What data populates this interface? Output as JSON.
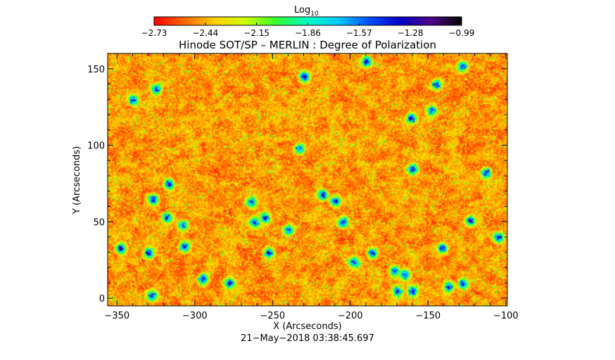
{
  "chart_data": {
    "type": "heatmap",
    "title": "Hinode SOT/SP – MERLIN : Degree of Polarization",
    "colorbar": {
      "label_main": "Log",
      "label_sub": "10",
      "ticks": [
        "−2.73",
        "−2.44",
        "−2.15",
        "−1.86",
        "−1.57",
        "−1.28",
        "−0.99"
      ],
      "range": [
        -2.73,
        -0.99
      ],
      "colormap": [
        "#ff0000",
        "#ff6a00",
        "#ffd200",
        "#c8ff00",
        "#32ff32",
        "#00ffc8",
        "#00c8ff",
        "#0050ff",
        "#0000c8",
        "#50008c",
        "#000000"
      ]
    },
    "xlabel": "X (Arcseconds)",
    "ylabel": "Y (Arcseconds)",
    "xlim": [
      -356,
      -99
    ],
    "ylim": [
      -5,
      160
    ],
    "xticks": [
      -350,
      -300,
      -250,
      -200,
      -150,
      -100
    ],
    "xtick_labels": [
      "−350",
      "−300",
      "−250",
      "−200",
      "−150",
      "−100"
    ],
    "yticks": [
      0,
      50,
      100,
      150
    ],
    "ytick_labels": [
      "0",
      "50",
      "100",
      "150"
    ],
    "timestamp": "21−May−2018 03:38:45.697",
    "strong_regions": [
      {
        "x": -190,
        "y": 155
      },
      {
        "x": -230,
        "y": 145
      },
      {
        "x": -128,
        "y": 152
      },
      {
        "x": -145,
        "y": 140
      },
      {
        "x": -148,
        "y": 123
      },
      {
        "x": -161,
        "y": 118
      },
      {
        "x": -340,
        "y": 130
      },
      {
        "x": -325,
        "y": 137
      },
      {
        "x": -317,
        "y": 75
      },
      {
        "x": -327,
        "y": 65
      },
      {
        "x": -318,
        "y": 53
      },
      {
        "x": -308,
        "y": 48
      },
      {
        "x": -307,
        "y": 34
      },
      {
        "x": -330,
        "y": 30
      },
      {
        "x": -348,
        "y": 33
      },
      {
        "x": -295,
        "y": 13
      },
      {
        "x": -278,
        "y": 10
      },
      {
        "x": -264,
        "y": 63
      },
      {
        "x": -262,
        "y": 50
      },
      {
        "x": -255,
        "y": 53
      },
      {
        "x": -253,
        "y": 30
      },
      {
        "x": -240,
        "y": 45
      },
      {
        "x": -218,
        "y": 68
      },
      {
        "x": -210,
        "y": 64
      },
      {
        "x": -205,
        "y": 50
      },
      {
        "x": -198,
        "y": 24
      },
      {
        "x": -172,
        "y": 18
      },
      {
        "x": -165,
        "y": 16
      },
      {
        "x": -170,
        "y": 5
      },
      {
        "x": -160,
        "y": 5
      },
      {
        "x": -137,
        "y": 8
      },
      {
        "x": -128,
        "y": 10
      },
      {
        "x": -141,
        "y": 33
      },
      {
        "x": -123,
        "y": 51
      },
      {
        "x": -105,
        "y": 40
      },
      {
        "x": -113,
        "y": 82
      },
      {
        "x": -160,
        "y": 85
      },
      {
        "x": -328,
        "y": 2
      },
      {
        "x": -233,
        "y": 98
      },
      {
        "x": -186,
        "y": 30
      }
    ]
  }
}
